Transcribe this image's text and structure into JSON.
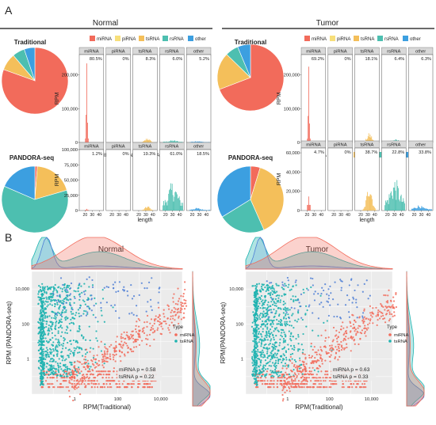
{
  "panels": {
    "A": "A",
    "B": "B"
  },
  "colors": {
    "miRNA": "#f26b5b",
    "piRNA": "#f7df7a",
    "tsRNA": "#f4bf5a",
    "rsRNA": "#4dbfb0",
    "other": "#3c9fe0"
  },
  "categories": [
    "miRNA",
    "piRNA",
    "tsRNA",
    "rsRNA",
    "other"
  ],
  "chart_data": [
    {
      "type": "pie",
      "group": "Normal",
      "method": "Traditional",
      "labels": [
        "miRNA",
        "piRNA",
        "tsRNA",
        "rsRNA",
        "other"
      ],
      "values": [
        80.5,
        0,
        8.3,
        6.0,
        5.2
      ]
    },
    {
      "type": "bar",
      "group": "Normal",
      "method": "Traditional",
      "facets": [
        "miRNA",
        "piRNA",
        "tsRNA",
        "rsRNA",
        "other"
      ],
      "facet_labels": [
        "80.5%",
        "0%",
        "8.3%",
        "6.0%",
        "5.2%"
      ],
      "facet_percent": [
        80.5,
        0,
        8.3,
        6.0,
        5.2
      ],
      "xlabel": "length",
      "ylabel": "RPM",
      "xticks": [
        "20",
        "30",
        "40"
      ],
      "yticks": [
        "0",
        "100,000",
        "200,000"
      ],
      "ylim": [
        0,
        260000
      ]
    },
    {
      "type": "pie",
      "group": "Normal",
      "method": "PANDORA-seq",
      "labels": [
        "miRNA",
        "piRNA",
        "tsRNA",
        "rsRNA",
        "other"
      ],
      "values": [
        1.2,
        0,
        19.3,
        61.0,
        18.5
      ]
    },
    {
      "type": "bar",
      "group": "Normal",
      "method": "PANDORA-seq",
      "facets": [
        "miRNA",
        "piRNA",
        "tsRNA",
        "rsRNA",
        "other"
      ],
      "facet_labels": [
        "1.2%",
        "0%",
        "19.3%",
        "61.0%",
        "18.5%"
      ],
      "facet_percent": [
        1.2,
        0,
        19.3,
        61.0,
        18.5
      ],
      "xlabel": "length",
      "ylabel": "RPM",
      "xticks": [
        "20",
        "30",
        "40"
      ],
      "yticks": [
        "0",
        "25,000",
        "50,000",
        "75,000",
        "100,000"
      ],
      "ylim": [
        0,
        100000
      ]
    },
    {
      "type": "pie",
      "group": "Tumor",
      "method": "Traditional",
      "labels": [
        "miRNA",
        "piRNA",
        "tsRNA",
        "rsRNA",
        "other"
      ],
      "values": [
        69.2,
        0,
        18.1,
        6.4,
        6.3
      ]
    },
    {
      "type": "bar",
      "group": "Tumor",
      "method": "Traditional",
      "facets": [
        "miRNA",
        "piRNA",
        "tsRNA",
        "rsRNA",
        "other"
      ],
      "facet_labels": [
        "69.2%",
        "0%",
        "18.1%",
        "6.4%",
        "6.3%"
      ],
      "facet_percent": [
        69.2,
        0,
        18.1,
        6.4,
        6.3
      ],
      "xlabel": "length",
      "ylabel": "RPM",
      "xticks": [
        "20",
        "30",
        "40"
      ],
      "yticks": [
        "0",
        "100,000",
        "200,000"
      ],
      "ylim": [
        0,
        260000
      ]
    },
    {
      "type": "pie",
      "group": "Tumor",
      "method": "PANDORA-seq",
      "labels": [
        "miRNA",
        "piRNA",
        "tsRNA",
        "rsRNA",
        "other"
      ],
      "values": [
        4.7,
        0,
        38.7,
        22.8,
        33.8
      ]
    },
    {
      "type": "bar",
      "group": "Tumor",
      "method": "PANDORA-seq",
      "facets": [
        "miRNA",
        "piRNA",
        "tsRNA",
        "rsRNA",
        "other"
      ],
      "facet_labels": [
        "4.7%",
        "0%",
        "38.7%",
        "22.8%",
        "33.8%"
      ],
      "facet_percent": [
        4.7,
        0,
        38.7,
        22.8,
        33.8
      ],
      "xlabel": "length",
      "ylabel": "RPM",
      "xticks": [
        "20",
        "30",
        "40"
      ],
      "yticks": [
        "0",
        "20,000",
        "40,000",
        "60,000"
      ],
      "ylim": [
        0,
        65000
      ]
    },
    {
      "type": "scatter",
      "group": "Normal",
      "xlabel": "RPM(Traditional)",
      "ylabel": "RPM (PANDORA-seq)",
      "xscale": "log",
      "yscale": "log",
      "xticks": [
        "1",
        "100",
        "10,000"
      ],
      "yticks": [
        "1",
        "100",
        "10,000"
      ],
      "xlim": [
        0.01,
        100000
      ],
      "ylim": [
        0.01,
        100000
      ],
      "legend_title": "Type",
      "series": [
        {
          "name": "miRNA",
          "color": "#f26b5b"
        },
        {
          "name": "tsRNA",
          "color": "#1fb3b0"
        }
      ],
      "stats": [
        "miRNA p =  0.58",
        "tsRNA p =  0.22"
      ]
    },
    {
      "type": "scatter",
      "group": "Tumor",
      "xlabel": "RPM(Traditional)",
      "ylabel": "RPM(PANDORA-seq)",
      "xscale": "log",
      "yscale": "log",
      "xticks": [
        "1",
        "100",
        "10,000"
      ],
      "yticks": [
        "1",
        "100",
        "10,000"
      ],
      "xlim": [
        0.01,
        100000
      ],
      "ylim": [
        0.01,
        100000
      ],
      "legend_title": "Type",
      "series": [
        {
          "name": "miRNA",
          "color": "#f26b5b"
        },
        {
          "name": "tsRNA",
          "color": "#1fb3b0"
        }
      ],
      "stats": [
        "miRNA p =  0.63",
        "tsRNA p =  0.33"
      ]
    }
  ]
}
